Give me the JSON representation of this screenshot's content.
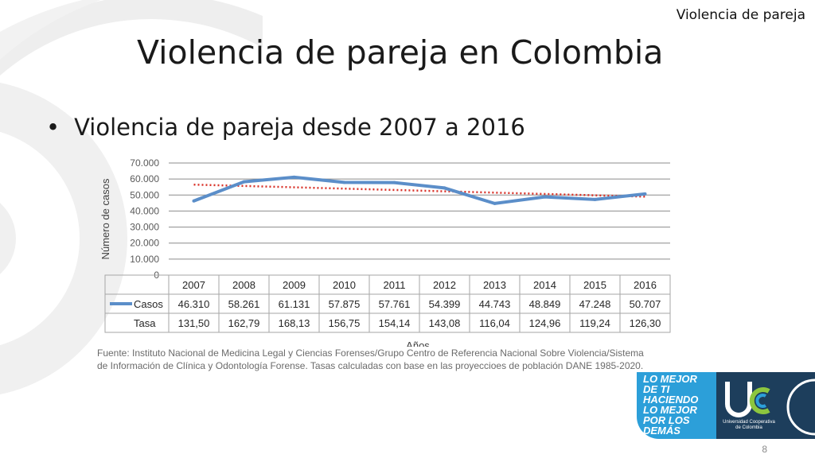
{
  "header": {
    "section_label": "Violencia de pareja",
    "title": "Violencia de pareja en Colombia",
    "bullet": "Violencia de pareja desde 2007 a 2016"
  },
  "chart_data": {
    "type": "line",
    "xlabel": "Años",
    "ylabel": "Número de casos",
    "ylim": [
      0,
      70000
    ],
    "y_ticks": [
      "0",
      "10.000",
      "20.000",
      "30.000",
      "40.000",
      "50.000",
      "60.000",
      "70.000"
    ],
    "categories": [
      "2007",
      "2008",
      "2009",
      "2010",
      "2011",
      "2012",
      "2013",
      "2014",
      "2015",
      "2016"
    ],
    "series": [
      {
        "name": "Casos",
        "color": "#5b8ec9",
        "values": [
          46310,
          58261,
          61131,
          57875,
          57761,
          54399,
          44743,
          48849,
          47248,
          50707
        ],
        "labels": [
          "46.310",
          "58.261",
          "61.131",
          "57.875",
          "57.761",
          "54.399",
          "44.743",
          "48.849",
          "47.248",
          "50.707"
        ]
      }
    ],
    "trendline": {
      "color": "#d9342b",
      "start": 56500,
      "end": 49000
    },
    "table": {
      "rows": [
        {
          "name": "Casos",
          "has_legend_line": true,
          "values": [
            "46.310",
            "58.261",
            "61.131",
            "57.875",
            "57.761",
            "54.399",
            "44.743",
            "48.849",
            "47.248",
            "50.707"
          ]
        },
        {
          "name": "Tasa",
          "has_legend_line": false,
          "values": [
            "131,50",
            "162,79",
            "168,13",
            "156,75",
            "154,14",
            "143,08",
            "116,04",
            "124,96",
            "119,24",
            "126,30"
          ]
        }
      ]
    },
    "grid": true
  },
  "source": {
    "line1": "Fuente: Instituto Nacional de Medicina Legal y Ciencias Forenses/Grupo Centro de Referencia Nacional Sobre Violencia/Sistema",
    "line2": "de Información de Clínica y Odontología Forense. Tasas calculadas con base en las proyeccioes de población DANE 1985-2020."
  },
  "logo": {
    "slogan_lines": [
      "LO MEJOR",
      "DE TI",
      "HACIENDO",
      "LO MEJOR",
      "POR LOS",
      "DEMÁS"
    ],
    "university_line1": "Universidad Cooperativa",
    "university_line2": "de Colombia",
    "colors": {
      "blue": "#2c9fd9",
      "navy": "#1d3e5c",
      "green": "#8cc63f"
    }
  },
  "page_number": "8"
}
